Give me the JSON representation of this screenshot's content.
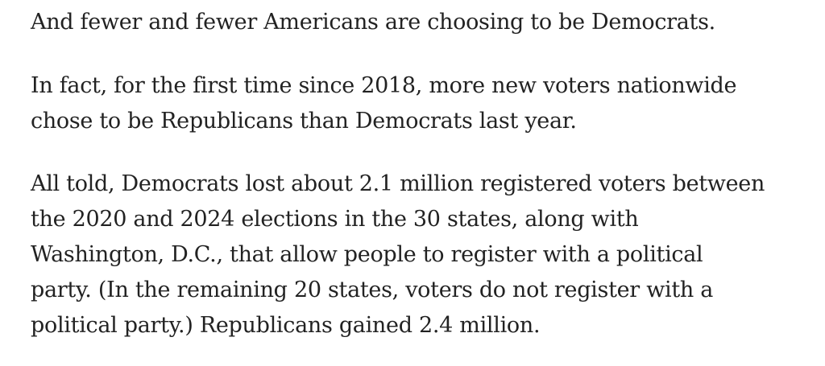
{
  "paragraphs": [
    {
      "lines": [
        "And fewer and fewer Americans are choosing to be Democrats."
      ]
    },
    {
      "lines": [
        "In fact, for the first time since 2018, more new voters nationwide",
        "chose to be Republicans than Democrats last year."
      ]
    },
    {
      "lines": [
        "All told, Democrats lost about 2.1 million registered voters between",
        "the 2020 and 2024 elections in the 30 states, along with",
        "Washington, D.C., that allow people to register with a political",
        "party. (In the remaining 20 states, voters do not register with a",
        "political party.) Republicans gained 2.4 million."
      ]
    }
  ]
}
